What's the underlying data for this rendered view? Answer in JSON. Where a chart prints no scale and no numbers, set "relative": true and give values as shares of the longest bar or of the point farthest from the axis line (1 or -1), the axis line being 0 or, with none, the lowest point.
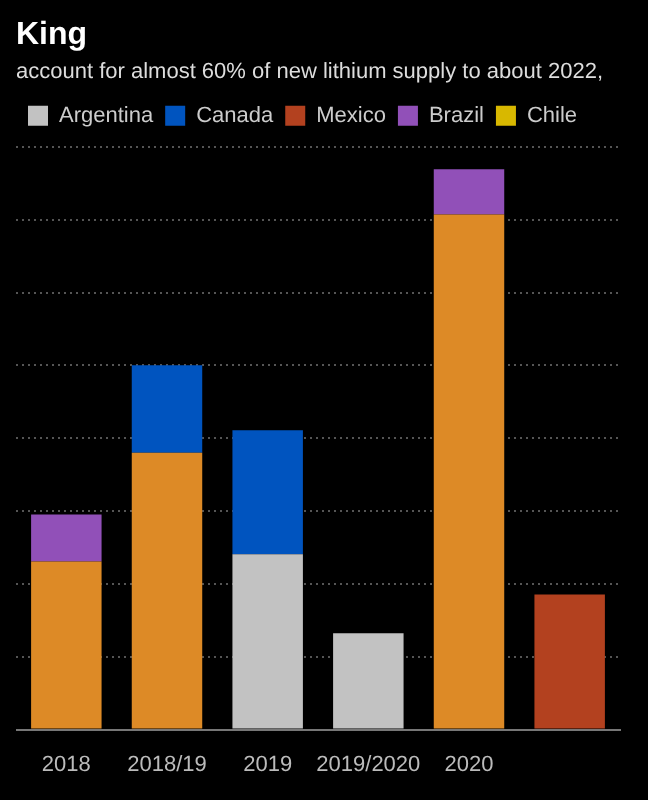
{
  "chart_data": {
    "type": "bar",
    "title": "King",
    "subtitle": "account for almost 60% of new lithium supply to about 2022,",
    "categories": [
      "2018",
      "2018/19",
      "2019",
      "2019/2020",
      "2020",
      null
    ],
    "stacked": true,
    "relative": true,
    "grid": "y",
    "legend": "top left",
    "series": [
      {
        "color": "#dd8a26",
        "values": [
          0.3,
          0.494,
          null,
          null,
          0.919,
          null
        ]
      },
      {
        "name": "Argentina",
        "color": "#c2c2c2",
        "values": [
          null,
          null,
          0.313,
          0.172,
          null,
          null
        ]
      },
      {
        "name": "Canada",
        "color": "#0054bf",
        "values": [
          null,
          0.156,
          0.221,
          null,
          null,
          null
        ]
      },
      {
        "name": "Mexico",
        "color": "#b3411f",
        "values": [
          null,
          null,
          null,
          null,
          null,
          0.241
        ]
      },
      {
        "name": "Brazil",
        "color": "#9150b8",
        "values": [
          0.084,
          null,
          null,
          null,
          0.081,
          null
        ]
      },
      {
        "name": "Chile",
        "color": "#d8b800",
        "values": [
          null,
          null,
          null,
          null,
          null,
          null
        ]
      }
    ]
  }
}
